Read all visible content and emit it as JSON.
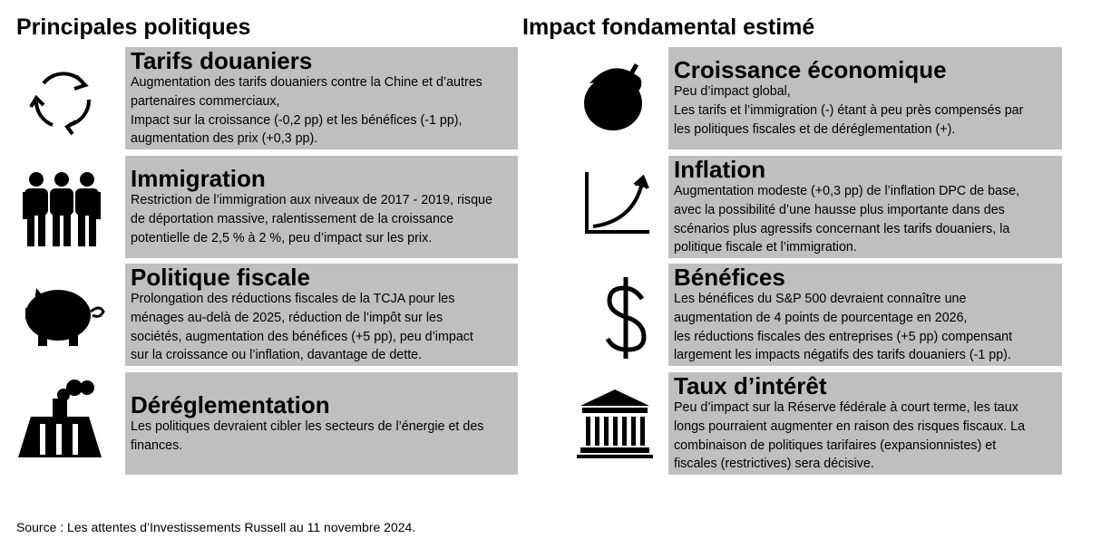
{
  "left": {
    "title": "Principales politiques",
    "items": [
      {
        "title": "Tarifs douaniers",
        "lines": [
          "Augmentation des tarifs douaniers contre la Chine et d’autres",
          "partenaires commerciaux,",
          "Impact sur la croissance (-0,2 pp) et les bénéfices (-1 pp),",
          "augmentation des prix (+0,3 pp)."
        ]
      },
      {
        "title": "Immigration",
        "lines": [
          "Restriction de l’immigration aux niveaux de 2017 - 2019, risque",
          "de déportation massive, ralentissement de la croissance",
          "potentielle de 2,5 % à 2 %, peu d’impact sur les prix."
        ]
      },
      {
        "title": "Politique fiscale",
        "lines": [
          "Prolongation des réductions fiscales de la TCJA pour les",
          "ménages au-delà de 2025, réduction de l’impôt sur les",
          "sociétés, augmentation des bénéfices (+5 pp), peu d’impact",
          "sur la croissance ou l’inflation, davantage de dette."
        ]
      },
      {
        "title": "Déréglementation",
        "lines": [
          "Les politiques devraient cibler les secteurs de l’énergie et des",
          "finances."
        ]
      }
    ]
  },
  "right": {
    "title": "Impact fondamental estimé",
    "items": [
      {
        "title": "Croissance économique",
        "lines": [
          "Peu d’impact global,",
          "Les tarifs et l’immigration (-) étant à peu près compensés par",
          "les politiques fiscales et de déréglementation (+)."
        ]
      },
      {
        "title": "Inflation",
        "lines": [
          "Augmentation modeste (+0,3 pp) de l’inflation DPC de base,",
          "avec la possibilité d’une hausse plus importante dans des",
          "scénarios plus agressifs concernant les tarifs douaniers, la",
          "politique fiscale et l’immigration."
        ]
      },
      {
        "title": "Bénéfices",
        "lines": [
          "Les bénéfices du S&P 500 devraient connaître une",
          "augmentation de 4 points de pourcentage en 2026,",
          "les réductions fiscales des entreprises (+5 pp) compensant",
          "largement les impacts négatifs des tarifs douaniers (-1 pp)."
        ]
      },
      {
        "title": "Taux d’intérêt",
        "lines": [
          "Peu d’impact sur la Réserve fédérale à court terme, les taux",
          "longs pourraient augmenter en raison des risques fiscaux. La",
          "combinaison de politiques tarifaires (expansionnistes) et",
          "fiscales (restrictives) sera décisive."
        ]
      }
    ]
  },
  "footer": {
    "source": "Source : Les attentes d’Investissements Russell au 11 novembre 2024."
  }
}
